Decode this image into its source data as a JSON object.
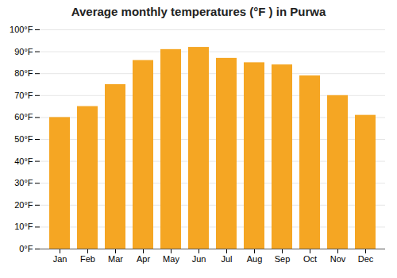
{
  "chart_data": {
    "type": "bar",
    "title": "Average monthly temperatures (°F ) in Purwa",
    "categories": [
      "Jan",
      "Feb",
      "Mar",
      "Apr",
      "May",
      "Jun",
      "Jul",
      "Aug",
      "Sep",
      "Oct",
      "Nov",
      "Dec"
    ],
    "values": [
      60,
      65,
      75,
      86,
      91,
      92,
      87,
      85,
      84,
      79,
      70,
      61
    ],
    "color": "#F5A623",
    "ylim": [
      0,
      100
    ],
    "yticks": [
      {
        "value": 0,
        "label": "0°F"
      },
      {
        "value": 10,
        "label": "10°F"
      },
      {
        "value": 20,
        "label": "20°F"
      },
      {
        "value": 30,
        "label": "30°F"
      },
      {
        "value": 40,
        "label": "40°F"
      },
      {
        "value": 50,
        "label": "50°F"
      },
      {
        "value": 60,
        "label": "60°F"
      },
      {
        "value": 70,
        "label": "70°F"
      },
      {
        "value": 80,
        "label": "80°F"
      },
      {
        "value": 90,
        "label": "90°F"
      },
      {
        "value": 100,
        "label": "100°F"
      }
    ],
    "grid": true
  }
}
